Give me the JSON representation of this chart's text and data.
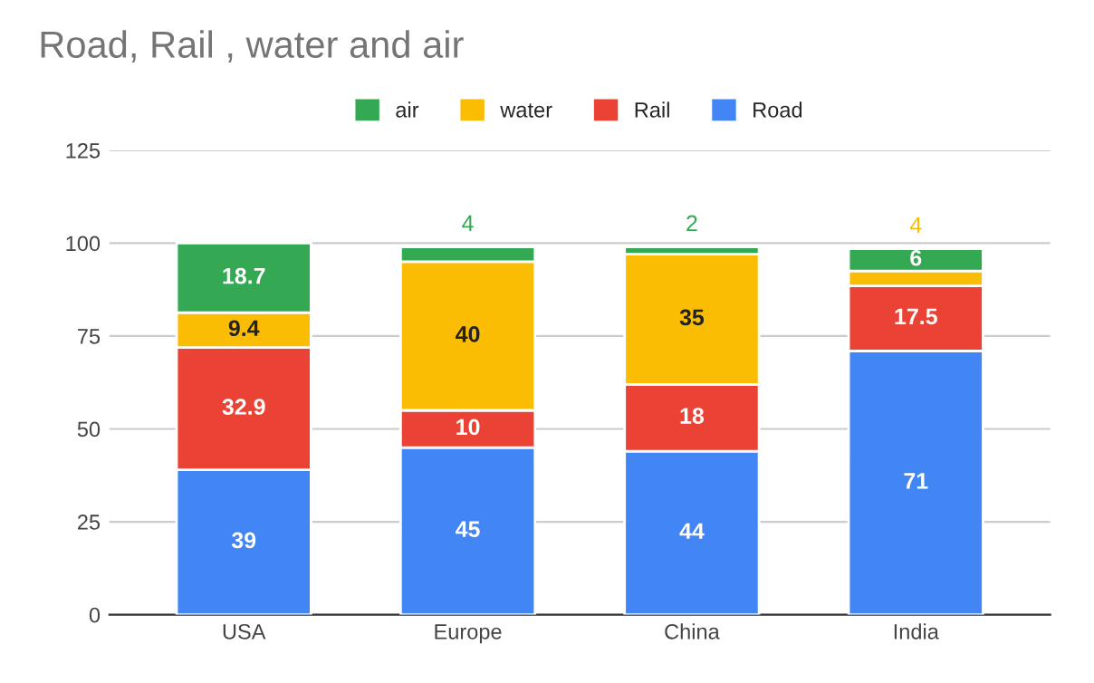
{
  "chart_data": {
    "type": "bar",
    "title": "Road, Rail , water and air",
    "categories": [
      "USA",
      "Europe",
      "China",
      "India"
    ],
    "stacked": true,
    "series": [
      {
        "name": "Road",
        "color": "#4285f4",
        "values": [
          39,
          45,
          44,
          71
        ]
      },
      {
        "name": "Rail",
        "color": "#ea4335",
        "values": [
          32.9,
          10,
          18,
          17.5
        ]
      },
      {
        "name": "water",
        "color": "#fbbc04",
        "values": [
          9.4,
          40,
          35,
          4
        ]
      },
      {
        "name": "air",
        "color": "#34a853",
        "values": [
          18.7,
          4,
          2,
          6
        ]
      }
    ],
    "ylim": [
      0,
      125
    ],
    "yticks": [
      0,
      25,
      50,
      75,
      100,
      125
    ],
    "grid": "y",
    "legend": "top",
    "data_labels": true
  }
}
